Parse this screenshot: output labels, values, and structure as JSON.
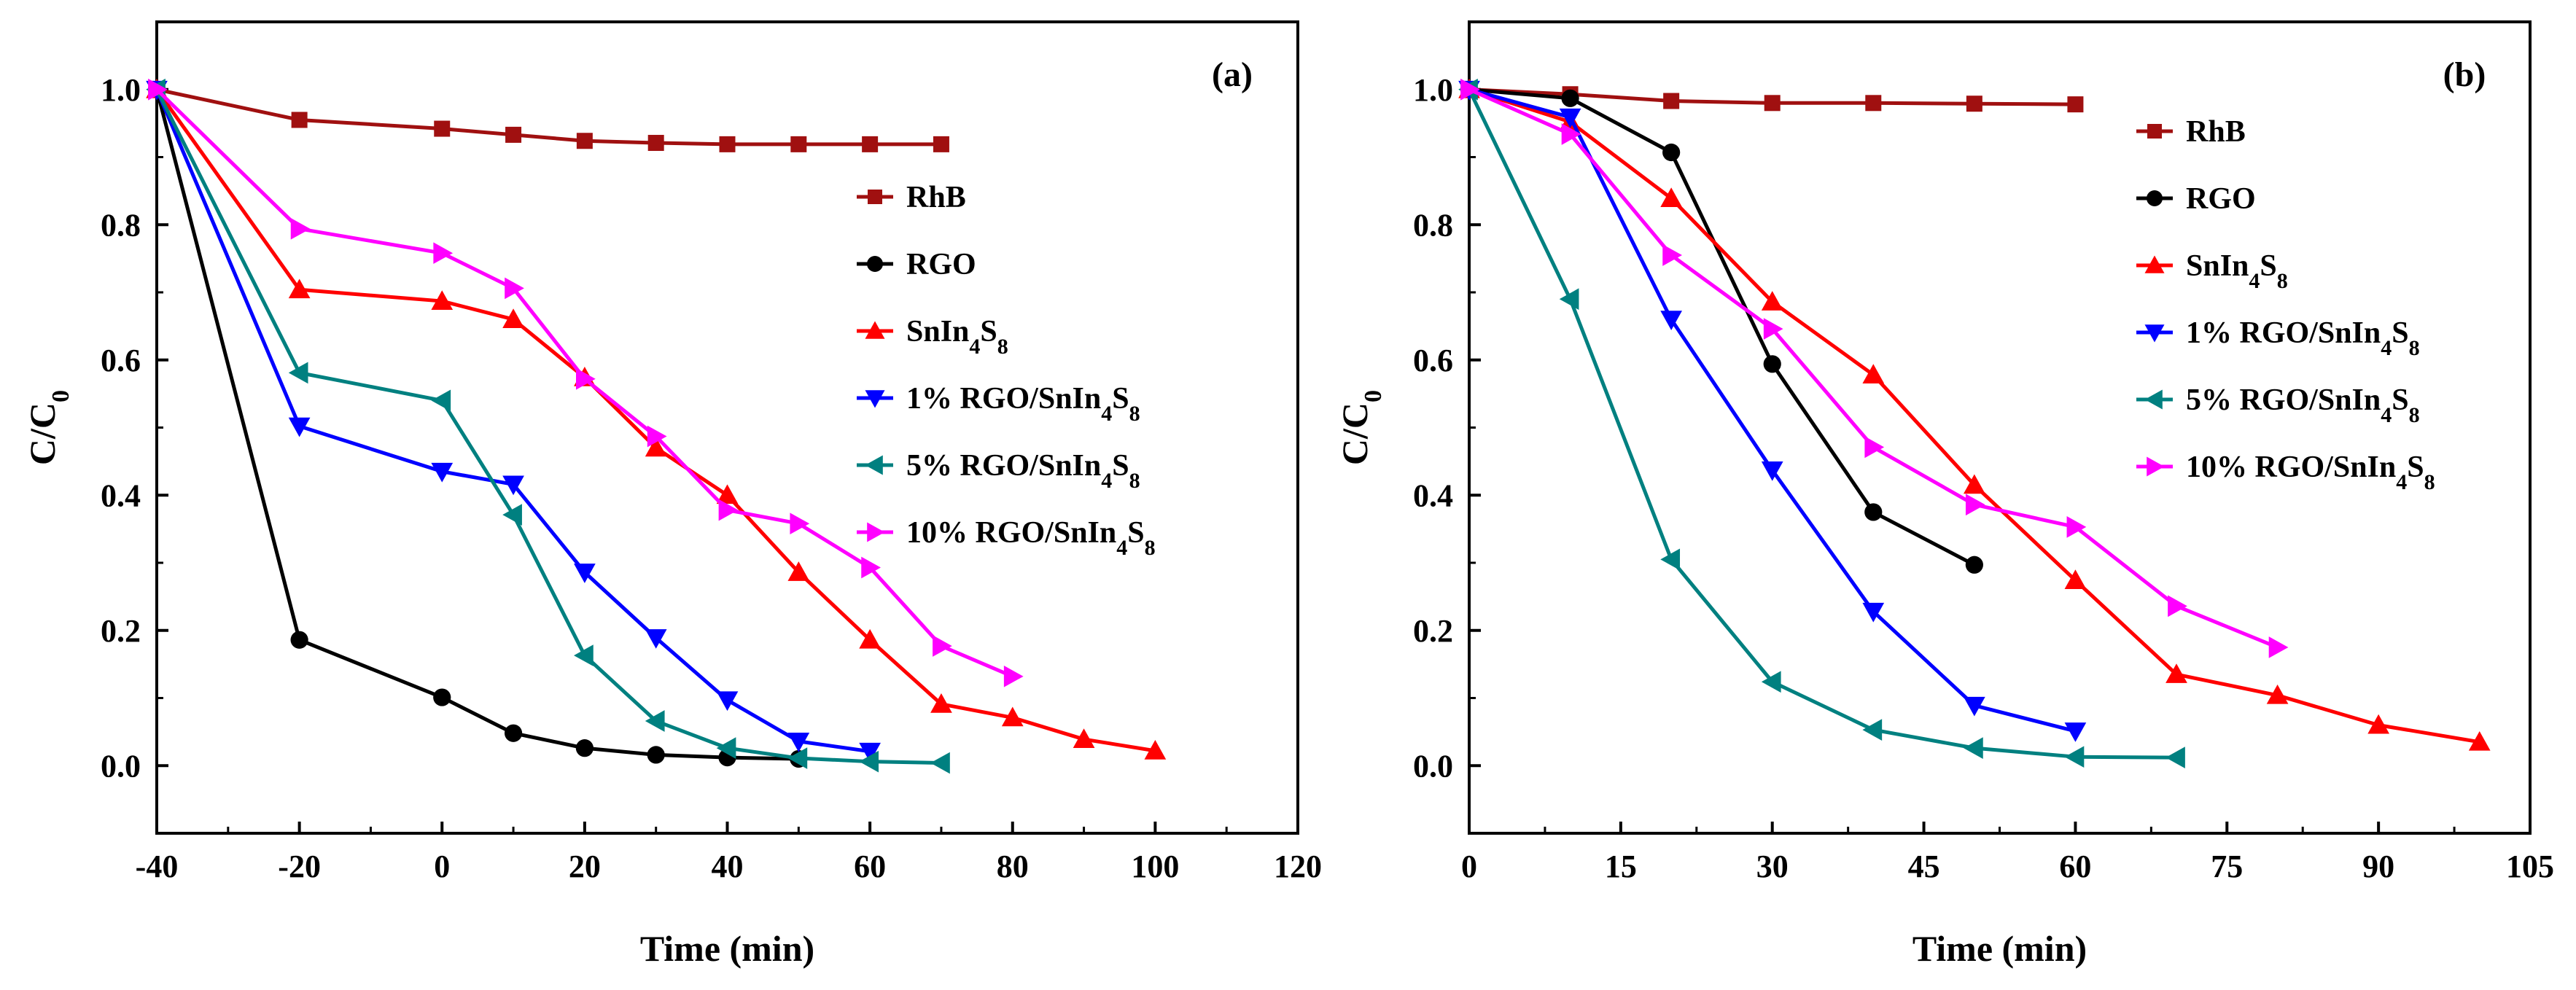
{
  "chart_data": [
    {
      "panel": "a",
      "type": "line",
      "panel_label": "(a)",
      "xlabel": "Time (min)",
      "ylabel": "C/C",
      "ylabel_sub": "0",
      "xlim": [
        -40,
        120
      ],
      "ylim": [
        -0.1,
        1.1
      ],
      "xticks": [
        -40,
        -20,
        0,
        20,
        40,
        60,
        80,
        100,
        120
      ],
      "xtick_labels": [
        "-40",
        "-20",
        "0",
        "20",
        "40",
        "60",
        "80",
        "100",
        "120"
      ],
      "yticks": [
        0.0,
        0.2,
        0.4,
        0.6,
        0.8,
        1.0
      ],
      "ytick_labels": [
        "0.0",
        "0.2",
        "0.4",
        "0.6",
        "0.8",
        "1.0"
      ],
      "legend_position": "right",
      "series": [
        {
          "name": "RhB",
          "color": "#A01010",
          "marker": "square",
          "x": [
            -40,
            -20,
            0,
            10,
            20,
            30,
            40,
            50,
            60,
            70
          ],
          "y": [
            1.0,
            0.955,
            0.942,
            0.933,
            0.924,
            0.921,
            0.919,
            0.919,
            0.919,
            0.919
          ]
        },
        {
          "name": "RGO",
          "color": "#000000",
          "marker": "circle",
          "x": [
            -40,
            -20,
            0,
            10,
            20,
            30,
            40,
            50
          ],
          "y": [
            1.0,
            0.186,
            0.101,
            0.048,
            0.026,
            0.016,
            0.012,
            0.01
          ]
        },
        {
          "name": "SnIn₄S₈",
          "color": "#FF0000",
          "marker": "triangle-up",
          "x": [
            -40,
            -20,
            0,
            10,
            20,
            30,
            40,
            50,
            60,
            70,
            80,
            90,
            100
          ],
          "y": [
            1.0,
            0.704,
            0.687,
            0.66,
            0.574,
            0.47,
            0.4,
            0.286,
            0.186,
            0.091,
            0.071,
            0.039,
            0.022
          ]
        },
        {
          "name": "1% RGO/SnIn₄S₈",
          "color": "#0000FF",
          "marker": "triangle-down",
          "x": [
            -40,
            -20,
            0,
            10,
            20,
            30,
            40,
            50,
            60
          ],
          "y": [
            1.0,
            0.502,
            0.435,
            0.416,
            0.286,
            0.189,
            0.097,
            0.036,
            0.021
          ]
        },
        {
          "name": "5%  RGO/SnIn₄S₈",
          "color": "#008080",
          "marker": "triangle-left",
          "x": [
            -40,
            -20,
            0,
            10,
            20,
            30,
            40,
            50,
            60,
            70
          ],
          "y": [
            1.0,
            0.581,
            0.54,
            0.371,
            0.163,
            0.066,
            0.026,
            0.011,
            0.006,
            0.004
          ]
        },
        {
          "name": "10%  RGO/SnIn₄S₈",
          "color": "#FF00FF",
          "marker": "triangle-right",
          "x": [
            -40,
            -20,
            0,
            10,
            20,
            30,
            40,
            50,
            60,
            70,
            80
          ],
          "y": [
            1.0,
            0.794,
            0.758,
            0.706,
            0.572,
            0.487,
            0.378,
            0.358,
            0.293,
            0.177,
            0.132
          ]
        }
      ]
    },
    {
      "panel": "b",
      "type": "line",
      "panel_label": "(b)",
      "xlabel": "Time (min)",
      "ylabel": "C/C",
      "ylabel_sub": "0",
      "xlim": [
        0,
        105
      ],
      "ylim": [
        -0.1,
        1.1
      ],
      "xticks": [
        0,
        15,
        30,
        45,
        60,
        75,
        90,
        105
      ],
      "xtick_labels": [
        "0",
        "15",
        "30",
        "45",
        "60",
        "75",
        "90",
        "105"
      ],
      "yticks": [
        0.0,
        0.2,
        0.4,
        0.6,
        0.8,
        1.0
      ],
      "ytick_labels": [
        "0.0",
        "0.2",
        "0.4",
        "0.6",
        "0.8",
        "1.0"
      ],
      "legend_position": "right",
      "series": [
        {
          "name": "RhB",
          "color": "#A01010",
          "marker": "square",
          "x": [
            0,
            10,
            20,
            30,
            40,
            50,
            60
          ],
          "y": [
            1.0,
            0.993,
            0.983,
            0.98,
            0.98,
            0.979,
            0.978
          ]
        },
        {
          "name": "RGO",
          "color": "#000000",
          "marker": "circle",
          "x": [
            0,
            10,
            20,
            30,
            40,
            50
          ],
          "y": [
            1.0,
            0.987,
            0.907,
            0.594,
            0.375,
            0.297
          ]
        },
        {
          "name": "SnIn₄S₈",
          "color": "#FF0000",
          "marker": "triangle-up",
          "x": [
            0,
            10,
            20,
            30,
            40,
            50,
            60,
            70,
            80,
            90,
            100
          ],
          "y": [
            1.0,
            0.952,
            0.839,
            0.686,
            0.578,
            0.415,
            0.274,
            0.135,
            0.104,
            0.06,
            0.035
          ]
        },
        {
          "name": "1% RGO/SnIn₄S₈",
          "color": "#0000FF",
          "marker": "triangle-down",
          "x": [
            0,
            10,
            20,
            30,
            40,
            50,
            60
          ],
          "y": [
            1.0,
            0.959,
            0.66,
            0.437,
            0.228,
            0.089,
            0.051
          ]
        },
        {
          "name": "5%  RGO/SnIn₄S₈",
          "color": "#008080",
          "marker": "triangle-left",
          "x": [
            0,
            10,
            20,
            30,
            40,
            50,
            60,
            70
          ],
          "y": [
            1.0,
            0.69,
            0.305,
            0.124,
            0.053,
            0.026,
            0.013,
            0.012
          ]
        },
        {
          "name": "10%  RGO/SnIn₄S₈",
          "color": "#FF00FF",
          "marker": "triangle-right",
          "x": [
            0,
            10,
            20,
            30,
            40,
            50,
            60,
            70,
            80
          ],
          "y": [
            1.0,
            0.934,
            0.755,
            0.646,
            0.471,
            0.386,
            0.353,
            0.236,
            0.175
          ]
        }
      ]
    }
  ]
}
